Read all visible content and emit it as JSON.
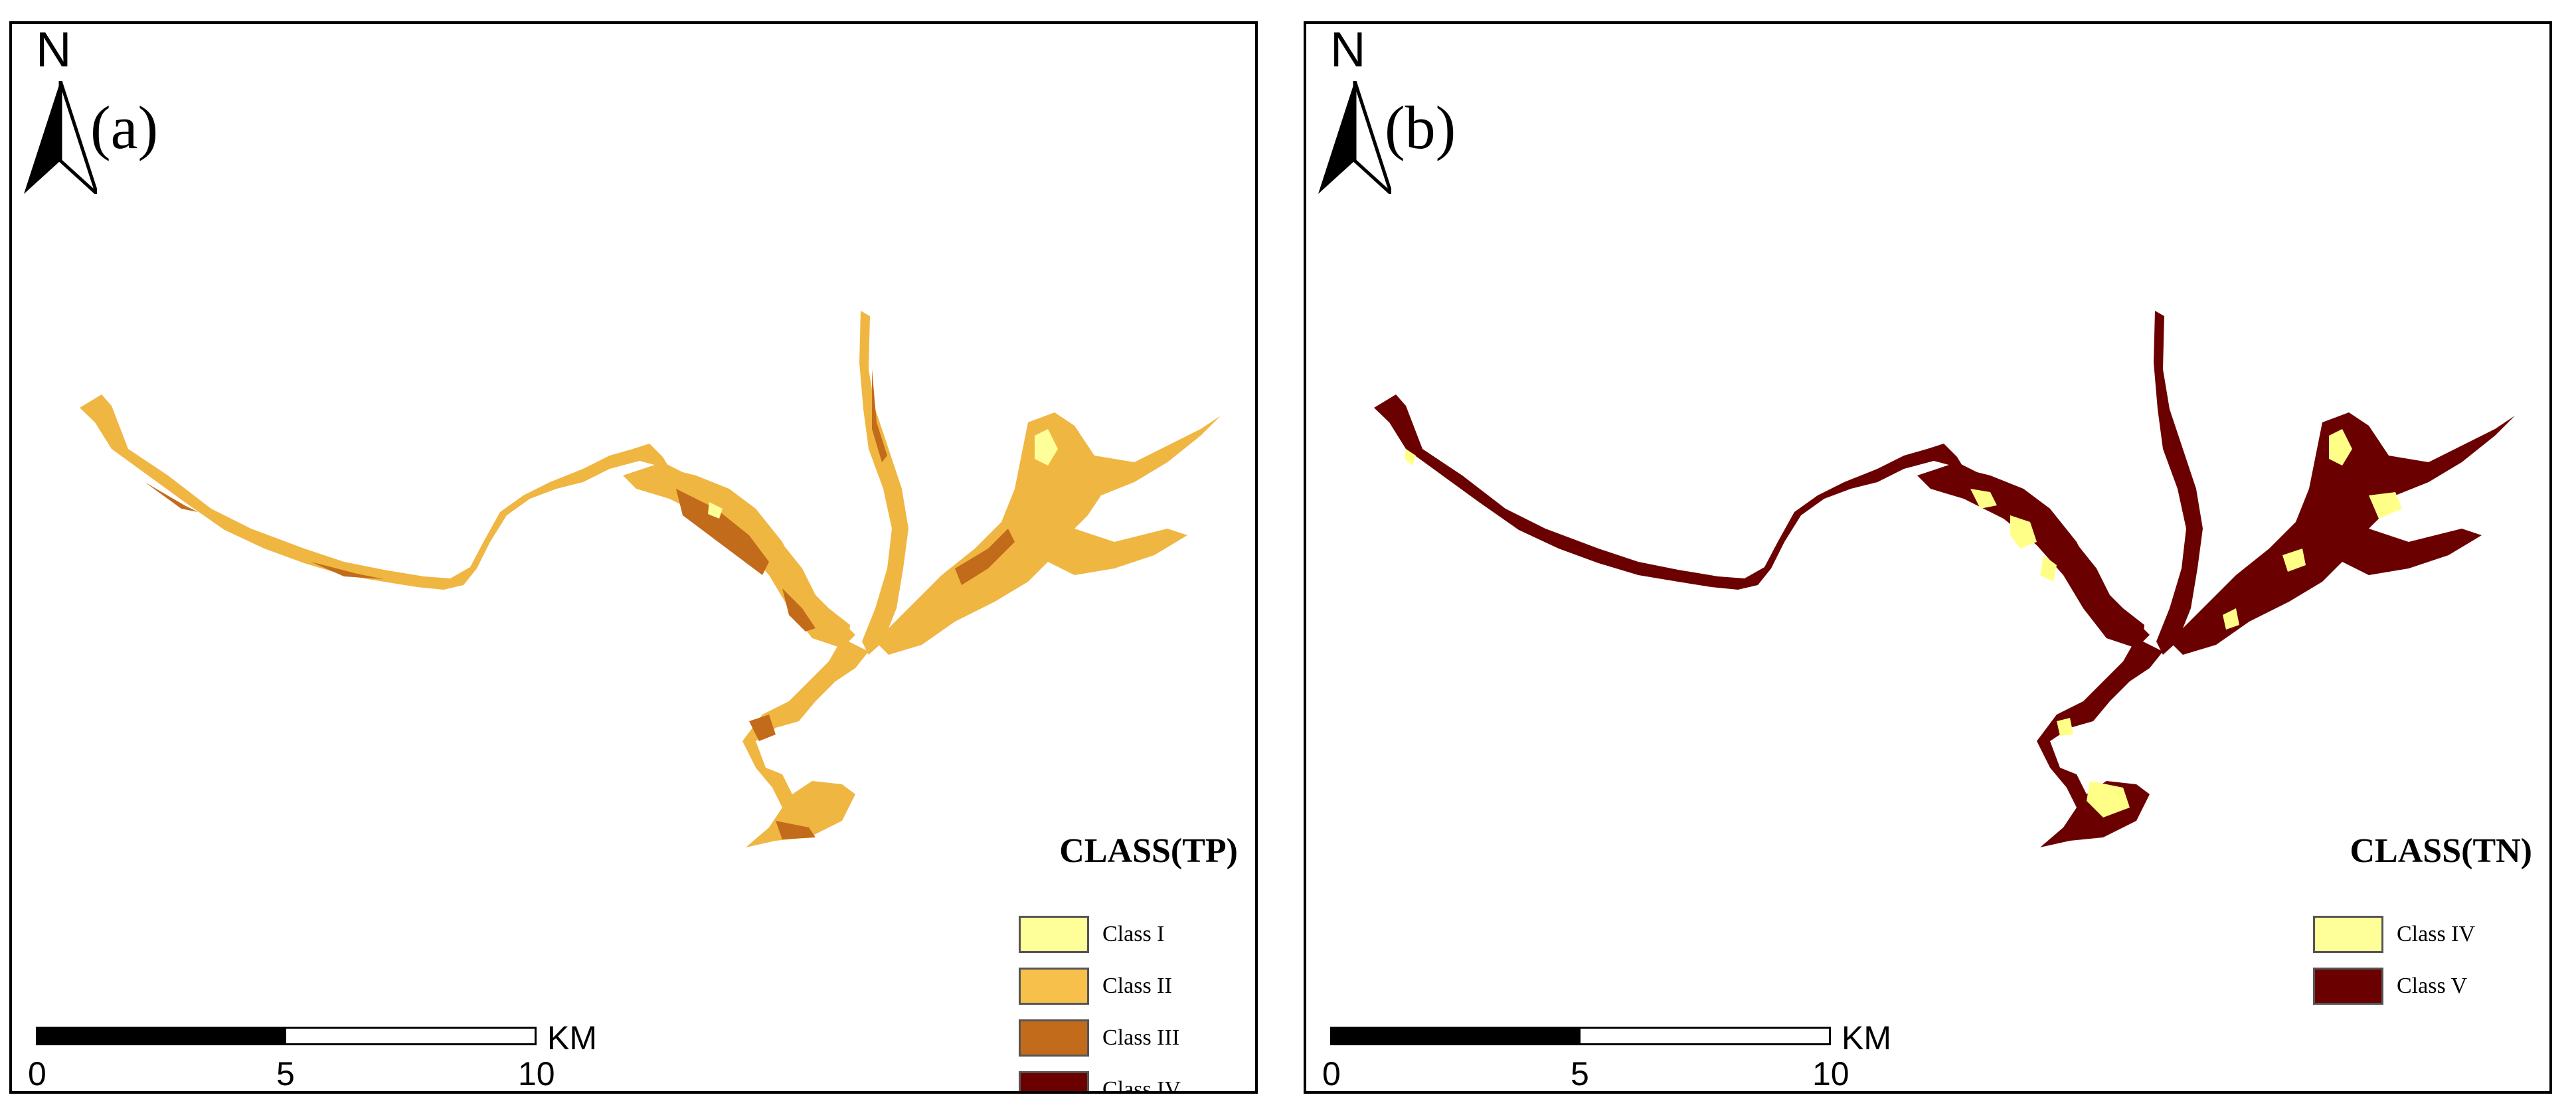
{
  "compass_letter": "N",
  "scale_unit": "KM",
  "scale_ticks": [
    "0",
    "5",
    "10"
  ],
  "panels": [
    {
      "label": "(a)",
      "legend": {
        "title": "CLASS(TP)",
        "items": [
          {
            "label": "Class I",
            "color": "#ffff99"
          },
          {
            "label": "Class II",
            "color": "#f7c04a"
          },
          {
            "label": "Class III",
            "color": "#c26b1b"
          },
          {
            "label": "Class IV",
            "color": "#6b0000"
          }
        ]
      },
      "base_color": "#f0b642",
      "accent_color": "#c26b1b",
      "highlight_color": "#ffff99"
    },
    {
      "label": "(b)",
      "legend": {
        "title": "CLASS(TN)",
        "items": [
          {
            "label": "Class IV",
            "color": "#ffff99"
          },
          {
            "label": "Class V",
            "color": "#6b0000"
          }
        ]
      },
      "base_color": "#6b0000",
      "accent_color": "#6b0000",
      "highlight_color": "#ffff88"
    }
  ]
}
